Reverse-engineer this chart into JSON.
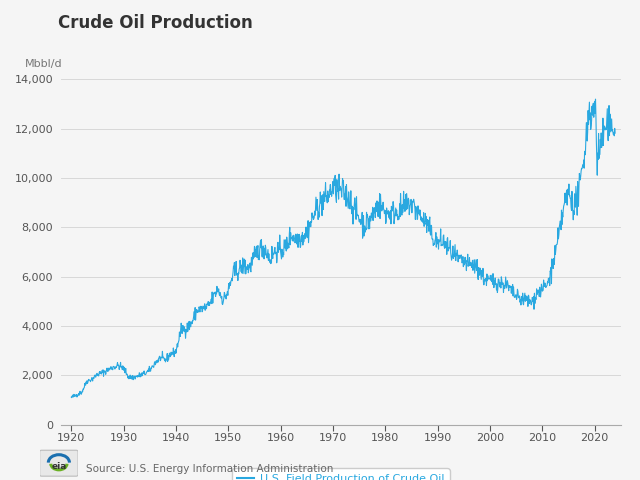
{
  "title": "Crude Oil Production",
  "ylabel": "Mbbl/d",
  "legend_label": "U.S. Field Production of Crude Oil",
  "line_color": "#29a8e0",
  "background_color": "#f5f5f5",
  "plot_bg_color": "#f5f5f5",
  "grid_color": "#d8d8d8",
  "ylim": [
    0,
    14000
  ],
  "yticks": [
    0,
    2000,
    4000,
    6000,
    8000,
    10000,
    12000,
    14000
  ],
  "xticks": [
    1920,
    1930,
    1940,
    1950,
    1960,
    1970,
    1980,
    1990,
    2000,
    2010,
    2020
  ],
  "source_text": "Source: U.S. Energy Information Administration",
  "title_fontsize": 12,
  "axis_label_fontsize": 8,
  "tick_fontsize": 8
}
